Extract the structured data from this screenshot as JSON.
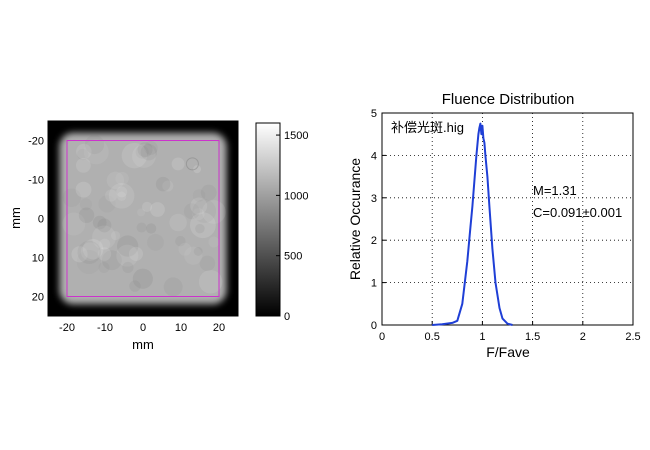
{
  "chart_data": [
    {
      "type": "heatmap",
      "xlabel": "mm",
      "ylabel": "mm",
      "x_ticks": [
        "-20",
        "-10",
        "0",
        "10",
        "20"
      ],
      "y_ticks": [
        "-20",
        "-10",
        "0",
        "10",
        "20"
      ],
      "xlim": [
        -25,
        25
      ],
      "ylim": [
        -25,
        25
      ],
      "colorbar": {
        "ticks": [
          "0",
          "500",
          "1000",
          "1500"
        ],
        "range": [
          0,
          1600
        ]
      },
      "roi_box": {
        "x": [
          -20,
          20
        ],
        "y": [
          -20,
          20
        ],
        "color": "#cc33cc"
      },
      "field": {
        "half_width_mm": 22,
        "level": 1350
      }
    },
    {
      "type": "line",
      "title": "Fluence Distribution",
      "xlabel": "F/Fave",
      "ylabel": "Relative Occurance",
      "xlim": [
        0,
        2.5
      ],
      "ylim": [
        0,
        5
      ],
      "x_ticks": [
        "0",
        "0.5",
        "1",
        "1.5",
        "2",
        "2.5"
      ],
      "y_ticks": [
        "0",
        "1",
        "2",
        "3",
        "4",
        "5"
      ],
      "grid": true,
      "series_color": "#1f3fd6",
      "x": [
        0.5,
        0.6,
        0.7,
        0.75,
        0.8,
        0.85,
        0.88,
        0.9,
        0.92,
        0.94,
        0.96,
        0.97,
        0.98,
        0.99,
        1.0,
        1.01,
        1.02,
        1.03,
        1.05,
        1.07,
        1.1,
        1.13,
        1.17,
        1.2,
        1.25,
        1.3
      ],
      "y": [
        0,
        0.02,
        0.05,
        0.1,
        0.5,
        1.5,
        2.3,
        2.8,
        3.4,
        4.0,
        4.5,
        4.65,
        4.75,
        4.5,
        4.7,
        4.4,
        4.3,
        4.0,
        3.5,
        2.8,
        1.8,
        1.0,
        0.4,
        0.15,
        0.03,
        0.0
      ],
      "annotations": {
        "file": "补偿光斑.hig",
        "m": "M=1.31",
        "c": "C=0.091±0.001"
      }
    }
  ]
}
